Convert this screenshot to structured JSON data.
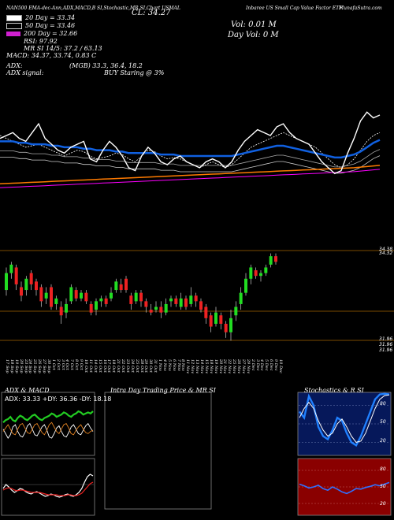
{
  "header": {
    "top_line": "NAN500 EMA-dec-Ann,ADX,MACD,B SI,Stochastic,MR SI,Chart USMAL",
    "close_label": "CL: 34.27",
    "volume_label": "Vol: 0.01 M",
    "day_vol_label": "Day Vol: 0   M",
    "fund_name": "Inbaree US Small Cap Value Factor ETF",
    "site": "MunafaSutra.com",
    "ema20": "20 Day = 33.34",
    "ema50": "50 Day = 33.46",
    "ema200": "200 Day = 32.66",
    "rsi": "RSI: 97.92",
    "mr": "MR SI 14/5: 37.2 / 63.13",
    "macd": "MACD: 34.37, 33.74, 0.83 C",
    "adx_label": "ADX:",
    "adx_values": "(MGB) 33.3, 36.4, 18.2",
    "adx_signal_label": "ADX signal:",
    "adx_signal_value": "BUY Staring @ 3%"
  },
  "colors": {
    "ema20": "#ffffff",
    "ema50": "#1060e0",
    "ema200": "#ff7a00",
    "rsi_swatch": "#d020d0",
    "up": "#22dd22",
    "down": "#ee2222"
  },
  "price_axis": {
    "top_labels": [
      "34.38",
      "34.32"
    ],
    "bottom_labels": [
      "31.96",
      "31.96",
      "31.96"
    ]
  },
  "dates": [
    "17 Sep",
    "18 Sep",
    "19 Sep",
    "20 Sep",
    "23 Sep",
    "24 Sep",
    "25 Sep",
    "26 Sep",
    "27 Sep",
    "30 Sep",
    "1 Oct",
    "2 Oct",
    "3 Oct",
    "4 Oct",
    "7 Oct",
    "8 Oct",
    "9 Oct",
    "10 Oct",
    "11 Oct",
    "14 Oct",
    "15 Oct",
    "16 Oct",
    "17 Oct",
    "18 Oct",
    "21 Oct",
    "22 Oct",
    "23 Oct",
    "24 Oct",
    "25 Oct",
    "28 Oct",
    "29 Oct",
    "30 Oct",
    "31 Oct",
    "1 Nov",
    "4 Nov",
    "5 Nov",
    "6 Nov",
    "7 Nov",
    "8 Nov",
    "11 Nov",
    "12 Nov",
    "13 Nov",
    "14 Nov",
    "15 Nov",
    "18 Nov",
    "19 Nov",
    "20 Nov",
    "21 Nov",
    "22 Nov",
    "25 Nov",
    "26 Nov",
    "27 Nov",
    "29 Nov",
    "2 Dec",
    "3 Dec",
    "4 Dec",
    "5 Dec",
    "6 Dec",
    "9 Dec",
    "10 Dec"
  ],
  "panels": {
    "adx": {
      "title": "ADX & MACD",
      "readout": "ADX: 33.33  +DY: 36.36  -DY: 18.18"
    },
    "intra": {
      "title": "Intra Day Trading Price & MR SI"
    },
    "stoch": {
      "title": "Stochastics & R SI",
      "ticks": [
        "80",
        "50",
        "20"
      ],
      "rsi_ticks": [
        "80",
        "50",
        "20"
      ]
    }
  },
  "chart_data": {
    "type": "line",
    "title": "",
    "series": [
      {
        "name": "20 Day",
        "values": [
          34.1,
          34.0,
          33.9,
          33.8,
          33.7,
          33.75,
          33.8,
          33.7,
          33.6,
          33.5,
          33.4,
          33.5,
          33.6,
          33.55,
          33.4,
          33.3,
          33.35,
          33.4,
          33.5,
          33.45,
          33.3,
          33.2,
          33.4,
          33.6,
          33.55,
          33.4,
          33.3,
          33.35,
          33.3,
          33.2,
          33.1,
          33.0,
          33.1,
          33.2,
          33.1,
          33.0,
          33.1,
          33.3,
          33.5,
          33.7,
          33.8,
          33.9,
          34.0,
          34.1,
          34.2,
          34.1,
          34.0,
          33.9,
          33.8,
          33.7,
          33.5,
          33.3,
          33.1,
          33.0,
          33.1,
          33.3,
          33.6,
          33.9,
          34.1,
          34.2
        ]
      },
      {
        "name": "50 Day",
        "values": [
          33.9,
          33.9,
          33.9,
          33.85,
          33.85,
          33.8,
          33.8,
          33.8,
          33.75,
          33.75,
          33.7,
          33.7,
          33.7,
          33.65,
          33.65,
          33.6,
          33.6,
          33.6,
          33.55,
          33.55,
          33.5,
          33.5,
          33.5,
          33.5,
          33.5,
          33.45,
          33.45,
          33.45,
          33.4,
          33.4,
          33.4,
          33.4,
          33.4,
          33.4,
          33.4,
          33.4,
          33.4,
          33.45,
          33.5,
          33.55,
          33.6,
          33.65,
          33.7,
          33.75,
          33.75,
          33.7,
          33.65,
          33.6,
          33.55,
          33.5,
          33.45,
          33.4,
          33.35,
          33.35,
          33.4,
          33.45,
          33.55,
          33.7,
          33.85,
          33.95
        ]
      },
      {
        "name": "200 Day",
        "values": [
          32.45,
          32.46,
          32.47,
          32.48,
          32.49,
          32.5,
          32.51,
          32.52,
          32.53,
          32.54,
          32.55,
          32.56,
          32.57,
          32.58,
          32.59,
          32.6,
          32.61,
          32.62,
          32.63,
          32.64,
          32.65,
          32.66,
          32.67,
          32.68,
          32.69,
          32.7,
          32.71,
          32.72,
          32.73,
          32.74,
          32.75,
          32.76,
          32.77,
          32.78,
          32.79,
          32.8,
          32.81,
          32.82,
          32.83,
          32.84,
          32.85,
          32.86,
          32.87,
          32.88,
          32.89,
          32.9,
          32.91,
          32.92,
          32.93,
          32.94,
          32.95,
          32.96,
          32.97,
          32.98,
          32.99,
          33.0,
          33.02,
          33.04,
          33.06,
          33.08
        ]
      },
      {
        "name": "Price",
        "values": [
          34.0,
          34.1,
          34.2,
          34.0,
          33.9,
          34.2,
          34.5,
          34.0,
          33.8,
          33.6,
          33.5,
          33.7,
          33.8,
          33.9,
          33.3,
          33.2,
          33.6,
          33.9,
          33.7,
          33.4,
          33.0,
          32.9,
          33.4,
          33.7,
          33.5,
          33.2,
          33.1,
          33.3,
          33.4,
          33.2,
          33.1,
          33.0,
          33.2,
          33.3,
          33.2,
          33.0,
          33.2,
          33.6,
          33.9,
          34.1,
          34.3,
          34.2,
          34.1,
          34.4,
          34.5,
          34.2,
          34.0,
          33.9,
          33.8,
          33.5,
          33.2,
          33.0,
          32.8,
          32.9,
          33.5,
          34.0,
          34.6,
          34.9,
          34.7,
          34.8
        ]
      }
    ],
    "x": [
      "17 Sep",
      "18 Sep",
      "19 Sep",
      "20 Sep",
      "23 Sep",
      "24 Sep",
      "25 Sep",
      "26 Sep",
      "27 Sep",
      "30 Sep",
      "1 Oct",
      "2 Oct",
      "3 Oct",
      "4 Oct",
      "7 Oct",
      "8 Oct",
      "9 Oct",
      "10 Oct",
      "11 Oct",
      "14 Oct",
      "15 Oct",
      "16 Oct",
      "17 Oct",
      "18 Oct",
      "21 Oct",
      "22 Oct",
      "23 Oct",
      "24 Oct",
      "25 Oct",
      "28 Oct",
      "29 Oct",
      "30 Oct",
      "31 Oct",
      "1 Nov",
      "4 Nov",
      "5 Nov",
      "6 Nov",
      "7 Nov",
      "8 Nov",
      "11 Nov",
      "12 Nov",
      "13 Nov",
      "14 Nov",
      "15 Nov",
      "18 Nov",
      "19 Nov",
      "20 Nov",
      "21 Nov",
      "22 Nov",
      "25 Nov",
      "26 Nov",
      "27 Nov",
      "29 Nov",
      "2 Dec",
      "3 Dec",
      "4 Dec",
      "5 Dec",
      "6 Dec",
      "9 Dec",
      "10 Dec"
    ],
    "ylim": [
      32.0,
      35.5
    ],
    "grid": false
  },
  "candles": [
    {
      "o": 33.2,
      "c": 33.8,
      "h": 34.0,
      "l": 33.0
    },
    {
      "o": 33.8,
      "c": 34.1,
      "h": 34.2,
      "l": 33.6
    },
    {
      "o": 34.0,
      "c": 33.4,
      "h": 34.1,
      "l": 33.2
    },
    {
      "o": 33.3,
      "c": 33.0,
      "h": 33.5,
      "l": 32.8
    },
    {
      "o": 33.2,
      "c": 33.6,
      "h": 33.7,
      "l": 33.0
    },
    {
      "o": 33.8,
      "c": 33.4,
      "h": 33.9,
      "l": 33.2
    },
    {
      "o": 33.5,
      "c": 33.2,
      "h": 33.6,
      "l": 33.0
    },
    {
      "o": 33.3,
      "c": 32.8,
      "h": 33.4,
      "l": 32.6
    },
    {
      "o": 32.9,
      "c": 33.1,
      "h": 33.3,
      "l": 32.7
    },
    {
      "o": 33.3,
      "c": 32.6,
      "h": 33.4,
      "l": 32.5
    },
    {
      "o": 32.7,
      "c": 32.9,
      "h": 33.0,
      "l": 32.5
    },
    {
      "o": 32.6,
      "c": 32.3,
      "h": 32.8,
      "l": 32.0
    },
    {
      "o": 32.4,
      "c": 32.7,
      "h": 32.9,
      "l": 32.2
    },
    {
      "o": 32.8,
      "c": 33.3,
      "h": 33.4,
      "l": 32.7
    },
    {
      "o": 33.2,
      "c": 32.9,
      "h": 33.3,
      "l": 32.8
    },
    {
      "o": 32.9,
      "c": 33.1,
      "h": 33.2,
      "l": 32.8
    },
    {
      "o": 33.1,
      "c": 32.8,
      "h": 33.2,
      "l": 32.7
    },
    {
      "o": 32.7,
      "c": 32.4,
      "h": 32.8,
      "l": 32.3
    },
    {
      "o": 32.5,
      "c": 32.8,
      "h": 32.9,
      "l": 32.3
    },
    {
      "o": 32.8,
      "c": 32.9,
      "h": 33.0,
      "l": 32.6
    },
    {
      "o": 32.9,
      "c": 32.7,
      "h": 33.0,
      "l": 32.6
    },
    {
      "o": 32.9,
      "c": 33.1,
      "h": 33.3,
      "l": 32.8
    },
    {
      "o": 33.2,
      "c": 33.5,
      "h": 33.6,
      "l": 33.1
    },
    {
      "o": 33.4,
      "c": 33.2,
      "h": 33.6,
      "l": 33.1
    },
    {
      "o": 33.6,
      "c": 33.2,
      "h": 33.7,
      "l": 33.1
    },
    {
      "o": 33.0,
      "c": 32.7,
      "h": 33.1,
      "l": 32.5
    },
    {
      "o": 32.8,
      "c": 33.1,
      "h": 33.2,
      "l": 32.7
    },
    {
      "o": 33.1,
      "c": 32.8,
      "h": 33.2,
      "l": 32.6
    },
    {
      "o": 32.8,
      "c": 32.6,
      "h": 32.9,
      "l": 32.4
    },
    {
      "o": 32.5,
      "c": 32.4,
      "h": 32.7,
      "l": 32.3
    },
    {
      "o": 32.5,
      "c": 32.6,
      "h": 32.8,
      "l": 32.4
    },
    {
      "o": 32.6,
      "c": 32.4,
      "h": 32.8,
      "l": 32.2
    },
    {
      "o": 32.4,
      "c": 32.7,
      "h": 32.9,
      "l": 32.3
    },
    {
      "o": 32.8,
      "c": 32.9,
      "h": 33.0,
      "l": 32.6
    },
    {
      "o": 32.9,
      "c": 32.7,
      "h": 33.0,
      "l": 32.6
    },
    {
      "o": 32.6,
      "c": 32.9,
      "h": 33.1,
      "l": 32.5
    },
    {
      "o": 32.9,
      "c": 32.6,
      "h": 33.0,
      "l": 32.5
    },
    {
      "o": 32.7,
      "c": 33.0,
      "h": 33.3,
      "l": 32.6
    },
    {
      "o": 33.0,
      "c": 32.8,
      "h": 33.1,
      "l": 32.6
    },
    {
      "o": 32.8,
      "c": 32.5,
      "h": 32.9,
      "l": 32.4
    },
    {
      "o": 32.6,
      "c": 32.2,
      "h": 32.7,
      "l": 32.0
    },
    {
      "o": 32.3,
      "c": 31.9,
      "h": 32.4,
      "l": 31.7
    },
    {
      "o": 32.0,
      "c": 32.4,
      "h": 32.6,
      "l": 31.9
    },
    {
      "o": 32.3,
      "c": 32.0,
      "h": 32.4,
      "l": 31.8
    },
    {
      "o": 32.0,
      "c": 31.7,
      "h": 32.1,
      "l": 31.5
    },
    {
      "o": 31.7,
      "c": 32.2,
      "h": 32.5,
      "l": 31.4
    },
    {
      "o": 32.3,
      "c": 32.6,
      "h": 32.8,
      "l": 32.1
    },
    {
      "o": 32.7,
      "c": 33.1,
      "h": 33.3,
      "l": 32.5
    },
    {
      "o": 33.1,
      "c": 33.6,
      "h": 33.8,
      "l": 33.0
    },
    {
      "o": 33.6,
      "c": 34.0,
      "h": 34.1,
      "l": 33.4
    },
    {
      "o": 33.9,
      "c": 33.7,
      "h": 34.0,
      "l": 33.6
    },
    {
      "o": 33.7,
      "c": 33.8,
      "h": 33.9,
      "l": 33.5
    },
    {
      "o": 33.8,
      "c": 34.0,
      "h": 34.1,
      "l": 33.7
    },
    {
      "o": 34.1,
      "c": 34.4,
      "h": 34.5,
      "l": 34.0
    },
    {
      "o": 34.4,
      "c": 34.2,
      "h": 34.5,
      "l": 34.1
    }
  ],
  "osc": {
    "adx_green": [
      28,
      30,
      31,
      33,
      30,
      29,
      32,
      34,
      33,
      31,
      30,
      32,
      34,
      35,
      33,
      31,
      30,
      32,
      33,
      34,
      36,
      35,
      33,
      34,
      35,
      37,
      36,
      34,
      33,
      35,
      36,
      38,
      37,
      35,
      36,
      37,
      36,
      38
    ],
    "adx_white": [
      22,
      18,
      14,
      17,
      24,
      26,
      20,
      16,
      15,
      19,
      25,
      27,
      22,
      17,
      16,
      20,
      24,
      26,
      21,
      15,
      14,
      18,
      23,
      25,
      20,
      16,
      15,
      19,
      24,
      26,
      22,
      18,
      17,
      21,
      25,
      27,
      23,
      20
    ],
    "adx_orange": [
      20,
      23,
      26,
      22,
      18,
      17,
      22,
      26,
      27,
      23,
      19,
      18,
      22,
      26,
      27,
      23,
      19,
      17,
      21,
      26,
      28,
      24,
      20,
      18,
      22,
      26,
      27,
      23,
      18,
      17,
      21,
      24,
      26,
      22,
      19,
      18,
      20,
      21
    ],
    "macd_white": [
      0.2,
      0.25,
      0.22,
      0.18,
      0.15,
      0.17,
      0.2,
      0.19,
      0.16,
      0.14,
      0.13,
      0.15,
      0.16,
      0.14,
      0.12,
      0.1,
      0.11,
      0.13,
      0.12,
      0.1,
      0.09,
      0.1,
      0.12,
      0.13,
      0.11,
      0.1,
      0.12,
      0.15,
      0.2,
      0.28,
      0.35,
      0.38,
      0.36
    ],
    "macd_red": [
      0.18,
      0.2,
      0.21,
      0.2,
      0.18,
      0.17,
      0.18,
      0.18,
      0.17,
      0.16,
      0.15,
      0.15,
      0.15,
      0.15,
      0.14,
      0.13,
      0.12,
      0.12,
      0.12,
      0.12,
      0.11,
      0.11,
      0.11,
      0.12,
      0.12,
      0.11,
      0.11,
      0.12,
      0.14,
      0.18,
      0.22,
      0.26,
      0.28
    ],
    "stoch_blue": [
      70,
      60,
      95,
      80,
      45,
      30,
      25,
      40,
      60,
      55,
      35,
      20,
      15,
      30,
      50,
      70,
      90,
      98,
      99,
      98
    ],
    "stoch_white": [
      60,
      75,
      85,
      75,
      55,
      40,
      30,
      35,
      50,
      58,
      45,
      30,
      20,
      22,
      35,
      55,
      75,
      90,
      96,
      97
    ],
    "rsi_blue": [
      55,
      52,
      48,
      50,
      53,
      47,
      44,
      50,
      46,
      41,
      38,
      42,
      47,
      46,
      49,
      51,
      54,
      52,
      55,
      58
    ]
  }
}
